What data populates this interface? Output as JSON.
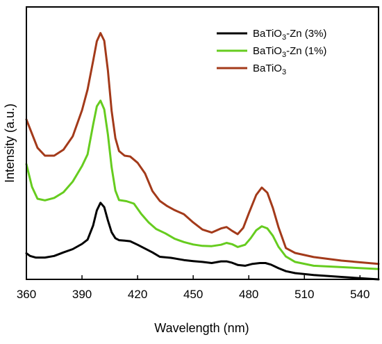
{
  "chart_data": {
    "type": "line",
    "title": "",
    "xlabel": "Wavelength (nm)",
    "ylabel": "Intensity (a.u.)",
    "xlim": [
      360,
      550
    ],
    "ylim": [
      0,
      100
    ],
    "x_ticks": [
      360,
      390,
      420,
      450,
      480,
      510,
      540
    ],
    "y_ticks_labeled": false,
    "grid": false,
    "legend_position": "top-right",
    "series": [
      {
        "name": "BaTiO3-Zn (3%)",
        "legend_parts": [
          {
            "text": "BaTiO",
            "sub": false
          },
          {
            "text": "3",
            "sub": true
          },
          {
            "text": "-Zn (3%)",
            "sub": false
          }
        ],
        "color": "#000000",
        "points": [
          [
            360,
            9.6
          ],
          [
            362,
            8.6
          ],
          [
            365,
            8.0
          ],
          [
            370,
            8.0
          ],
          [
            375,
            8.6
          ],
          [
            380,
            9.9
          ],
          [
            385,
            11.1
          ],
          [
            390,
            13.0
          ],
          [
            393,
            14.6
          ],
          [
            396,
            19.8
          ],
          [
            398,
            25.3
          ],
          [
            400,
            28.1
          ],
          [
            402,
            26.5
          ],
          [
            404,
            21.6
          ],
          [
            406,
            17.3
          ],
          [
            408,
            15.1
          ],
          [
            410,
            14.4
          ],
          [
            413,
            14.2
          ],
          [
            416,
            14.0
          ],
          [
            420,
            12.7
          ],
          [
            424,
            11.3
          ],
          [
            428,
            9.9
          ],
          [
            432,
            8.3
          ],
          [
            438,
            7.9
          ],
          [
            445,
            7.1
          ],
          [
            450,
            6.7
          ],
          [
            455,
            6.4
          ],
          [
            460,
            6.0
          ],
          [
            465,
            6.6
          ],
          [
            468,
            6.6
          ],
          [
            471,
            6.1
          ],
          [
            474,
            5.3
          ],
          [
            478,
            5.0
          ],
          [
            482,
            5.7
          ],
          [
            486,
            6.0
          ],
          [
            489,
            6.0
          ],
          [
            492,
            5.4
          ],
          [
            496,
            4.1
          ],
          [
            500,
            3.0
          ],
          [
            505,
            2.3
          ],
          [
            515,
            1.6
          ],
          [
            530,
            0.9
          ],
          [
            550,
            0.0
          ]
        ]
      },
      {
        "name": "BaTiO3-Zn (1%)",
        "legend_parts": [
          {
            "text": "BaTiO",
            "sub": false
          },
          {
            "text": "3",
            "sub": true
          },
          {
            "text": "-Zn (1%)",
            "sub": false
          }
        ],
        "color": "#66cc1f",
        "points": [
          [
            360,
            42.3
          ],
          [
            363,
            34.0
          ],
          [
            366,
            29.6
          ],
          [
            370,
            29.0
          ],
          [
            375,
            29.9
          ],
          [
            380,
            32.0
          ],
          [
            385,
            35.9
          ],
          [
            390,
            41.6
          ],
          [
            393,
            45.9
          ],
          [
            396,
            56.8
          ],
          [
            398,
            63.5
          ],
          [
            400,
            65.6
          ],
          [
            402,
            62.4
          ],
          [
            404,
            53.1
          ],
          [
            406,
            41.2
          ],
          [
            408,
            32.6
          ],
          [
            410,
            29.1
          ],
          [
            414,
            28.7
          ],
          [
            418,
            27.8
          ],
          [
            422,
            24.0
          ],
          [
            426,
            20.9
          ],
          [
            430,
            18.5
          ],
          [
            435,
            16.9
          ],
          [
            440,
            14.9
          ],
          [
            445,
            13.7
          ],
          [
            450,
            12.8
          ],
          [
            455,
            12.3
          ],
          [
            460,
            12.2
          ],
          [
            465,
            12.7
          ],
          [
            468,
            13.4
          ],
          [
            471,
            12.9
          ],
          [
            474,
            11.9
          ],
          [
            478,
            12.7
          ],
          [
            481,
            15.1
          ],
          [
            484,
            18.0
          ],
          [
            487,
            19.5
          ],
          [
            490,
            18.7
          ],
          [
            493,
            16.0
          ],
          [
            496,
            12.0
          ],
          [
            500,
            8.4
          ],
          [
            505,
            6.4
          ],
          [
            515,
            5.0
          ],
          [
            530,
            4.5
          ],
          [
            550,
            3.8
          ]
        ]
      },
      {
        "name": "BaTiO3",
        "legend_parts": [
          {
            "text": "BaTiO",
            "sub": false
          },
          {
            "text": "3",
            "sub": true
          }
        ],
        "color": "#a33a1a",
        "points": [
          [
            360,
            58.7
          ],
          [
            363,
            53.5
          ],
          [
            366,
            48.3
          ],
          [
            370,
            45.4
          ],
          [
            375,
            45.4
          ],
          [
            380,
            47.6
          ],
          [
            385,
            52.5
          ],
          [
            390,
            62.1
          ],
          [
            393,
            69.7
          ],
          [
            396,
            80.2
          ],
          [
            398,
            87.4
          ],
          [
            400,
            90.4
          ],
          [
            402,
            87.6
          ],
          [
            404,
            76.6
          ],
          [
            406,
            61.9
          ],
          [
            408,
            51.9
          ],
          [
            410,
            47.1
          ],
          [
            413,
            45.4
          ],
          [
            416,
            45.1
          ],
          [
            420,
            42.8
          ],
          [
            424,
            38.9
          ],
          [
            428,
            32.4
          ],
          [
            432,
            28.8
          ],
          [
            436,
            26.9
          ],
          [
            440,
            25.4
          ],
          [
            445,
            23.9
          ],
          [
            450,
            20.9
          ],
          [
            455,
            18.3
          ],
          [
            460,
            17.2
          ],
          [
            465,
            18.7
          ],
          [
            468,
            19.2
          ],
          [
            471,
            17.8
          ],
          [
            474,
            16.6
          ],
          [
            477,
            18.9
          ],
          [
            480,
            24.2
          ],
          [
            484,
            31.0
          ],
          [
            487,
            33.7
          ],
          [
            490,
            31.8
          ],
          [
            493,
            26.2
          ],
          [
            496,
            19.2
          ],
          [
            500,
            11.5
          ],
          [
            505,
            9.7
          ],
          [
            515,
            8.2
          ],
          [
            530,
            6.9
          ],
          [
            550,
            5.7
          ]
        ]
      }
    ]
  }
}
